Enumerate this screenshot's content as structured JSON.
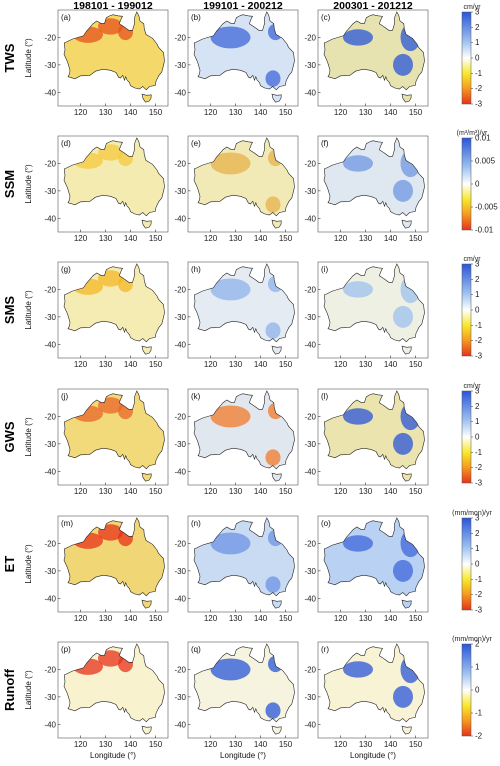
{
  "columns": [
    "198101 - 199012",
    "199101 - 200212",
    "200301 - 201212"
  ],
  "rows": [
    {
      "name": "TWS",
      "unit": "cm/yr",
      "ticks": [
        "3",
        "2",
        "1",
        "0",
        "-1",
        "-2",
        "-3"
      ],
      "tickValues": [
        3,
        2,
        1,
        0,
        -1,
        -2,
        -3
      ],
      "range": [
        -3,
        3
      ]
    },
    {
      "name": "SSM",
      "unit": "(m³/m³)/yr",
      "ticks": [
        "0.01",
        "0.005",
        "0",
        "-0.005",
        "-0.01"
      ],
      "tickValues": [
        0.01,
        0.005,
        0,
        -0.005,
        -0.01
      ],
      "range": [
        -0.01,
        0.01
      ]
    },
    {
      "name": "SMS",
      "unit": "cm/yr",
      "ticks": [
        "3",
        "2",
        "1",
        "0",
        "-1",
        "-2",
        "-3"
      ],
      "tickValues": [
        3,
        2,
        1,
        0,
        -1,
        -2,
        -3
      ],
      "range": [
        -3,
        3
      ]
    },
    {
      "name": "GWS",
      "unit": "cm/yr",
      "ticks": [
        "3",
        "2",
        "1",
        "0",
        "-1",
        "-2",
        "-3"
      ],
      "tickValues": [
        3,
        2,
        1,
        0,
        -1,
        -2,
        -3
      ],
      "range": [
        -3,
        3
      ]
    },
    {
      "name": "ET",
      "unit": "(mm/mon)/yr",
      "ticks": [
        "3",
        "2",
        "1",
        "0",
        "-1",
        "-2",
        "-3"
      ],
      "tickValues": [
        3,
        2,
        1,
        0,
        -1,
        -2,
        -3
      ],
      "range": [
        -3,
        3
      ]
    },
    {
      "name": "Runoff",
      "unit": "(mm/mon)/yr",
      "ticks": [
        "2",
        "1",
        "0",
        "-1",
        "-2"
      ],
      "tickValues": [
        2,
        1,
        0,
        -1,
        -2
      ],
      "range": [
        -2,
        2
      ]
    }
  ],
  "panelLabels": [
    "(a)",
    "(b)",
    "(c)",
    "(d)",
    "(e)",
    "(f)",
    "(g)",
    "(h)",
    "(i)",
    "(j)",
    "(k)",
    "(l)",
    "(m)",
    "(n)",
    "(o)",
    "(p)",
    "(q)",
    "(r)"
  ],
  "xticks": [
    "120",
    "130",
    "140",
    "150"
  ],
  "yticks": [
    "-20",
    "-30",
    "-40"
  ],
  "ylabel": "Latitude (°)",
  "xlabel": "Longitude (°)",
  "colorbar": {
    "negative_end": "#e8321a",
    "mid_low": "#f8e72a",
    "zero": "#ffffff",
    "mid_high": "#9ec2f0",
    "positive_end": "#2a55d8"
  },
  "panelFill": {
    "TWS": [
      "#f4d86a",
      "#d6e3f4",
      "#e7e3b0"
    ],
    "SSM": [
      "#f4ebb0",
      "#f1eab6",
      "#dfe7f0"
    ],
    "SMS": [
      "#f5ecb4",
      "#e4ebf3",
      "#eef0e4"
    ],
    "GWS": [
      "#f2d979",
      "#e1e7ef",
      "#ece4ae"
    ],
    "ET": [
      "#f0d675",
      "#c9dbf3",
      "#b9d1f2"
    ],
    "Runoff": [
      "#f8f2cf",
      "#f6f3de",
      "#f8f3d5"
    ]
  },
  "panelHighlight": {
    "TWS": [
      "#e8521e",
      "#3d67d9",
      "#2a55d8"
    ],
    "SSM": [
      "#f6c940",
      "#e6b24a",
      "#6f97e3"
    ],
    "SMS": [
      "#f3b825",
      "#8fb2ea",
      "#9ec0ee"
    ],
    "GWS": [
      "#e9662a",
      "#f07a2a",
      "#2a55d8"
    ],
    "ET": [
      "#e8321a",
      "#6d93e6",
      "#3e66db"
    ],
    "Runoff": [
      "#e8321a",
      "#2a55d8",
      "#2a55d8"
    ]
  }
}
